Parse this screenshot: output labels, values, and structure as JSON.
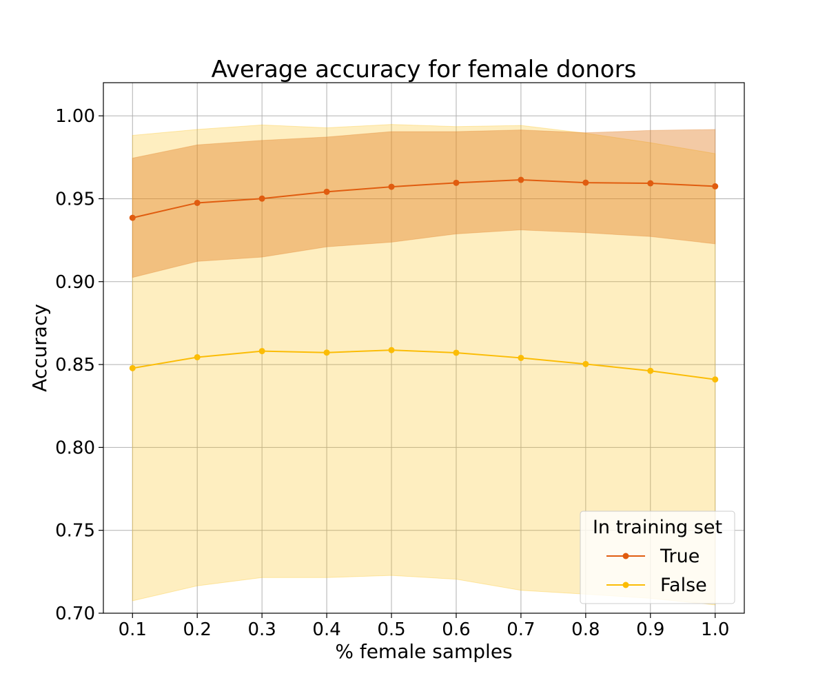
{
  "chart_data": {
    "type": "line",
    "title": "Average accuracy for female donors",
    "xlabel": "% female samples",
    "ylabel": "Accuracy",
    "x": [
      0.1,
      0.2,
      0.3,
      0.4,
      0.5,
      0.6,
      0.7,
      0.8,
      0.9,
      1.0
    ],
    "x_tick_labels": [
      "0.1",
      "0.2",
      "0.3",
      "0.4",
      "0.5",
      "0.6",
      "0.7",
      "0.8",
      "0.9",
      "1.0"
    ],
    "y_ticks": [
      0.7,
      0.75,
      0.8,
      0.85,
      0.9,
      0.95,
      1.0
    ],
    "y_tick_labels": [
      "0.70",
      "0.75",
      "0.80",
      "0.85",
      "0.90",
      "0.95",
      "1.00"
    ],
    "xlim": [
      0.055,
      1.045
    ],
    "ylim": [
      0.7,
      1.02
    ],
    "grid": true,
    "legend": {
      "title": "In training set",
      "placement": "lower-right"
    },
    "series": [
      {
        "name": "True",
        "color": "#e05c0f",
        "band_color": "#e07a1f",
        "values": [
          0.9385,
          0.9475,
          0.9501,
          0.9542,
          0.9572,
          0.9596,
          0.9614,
          0.9597,
          0.9593,
          0.9575
        ],
        "lower": [
          0.9025,
          0.9122,
          0.9148,
          0.921,
          0.9238,
          0.9288,
          0.9312,
          0.9295,
          0.9272,
          0.9228
        ],
        "upper": [
          0.9745,
          0.9825,
          0.9852,
          0.9872,
          0.9905,
          0.9905,
          0.9915,
          0.9898,
          0.9912,
          0.9918
        ]
      },
      {
        "name": "False",
        "color": "#fbbc05",
        "band_color": "#fbbc05",
        "values": [
          0.8478,
          0.8544,
          0.8581,
          0.8572,
          0.8587,
          0.8571,
          0.854,
          0.8503,
          0.8462,
          0.841
        ],
        "lower": [
          0.7075,
          0.7165,
          0.7215,
          0.7215,
          0.7228,
          0.7205,
          0.7138,
          0.7115,
          0.709,
          0.705
        ],
        "upper": [
          0.9882,
          0.9918,
          0.9945,
          0.9928,
          0.9948,
          0.9935,
          0.9942,
          0.9895,
          0.9838,
          0.9772
        ]
      }
    ]
  }
}
